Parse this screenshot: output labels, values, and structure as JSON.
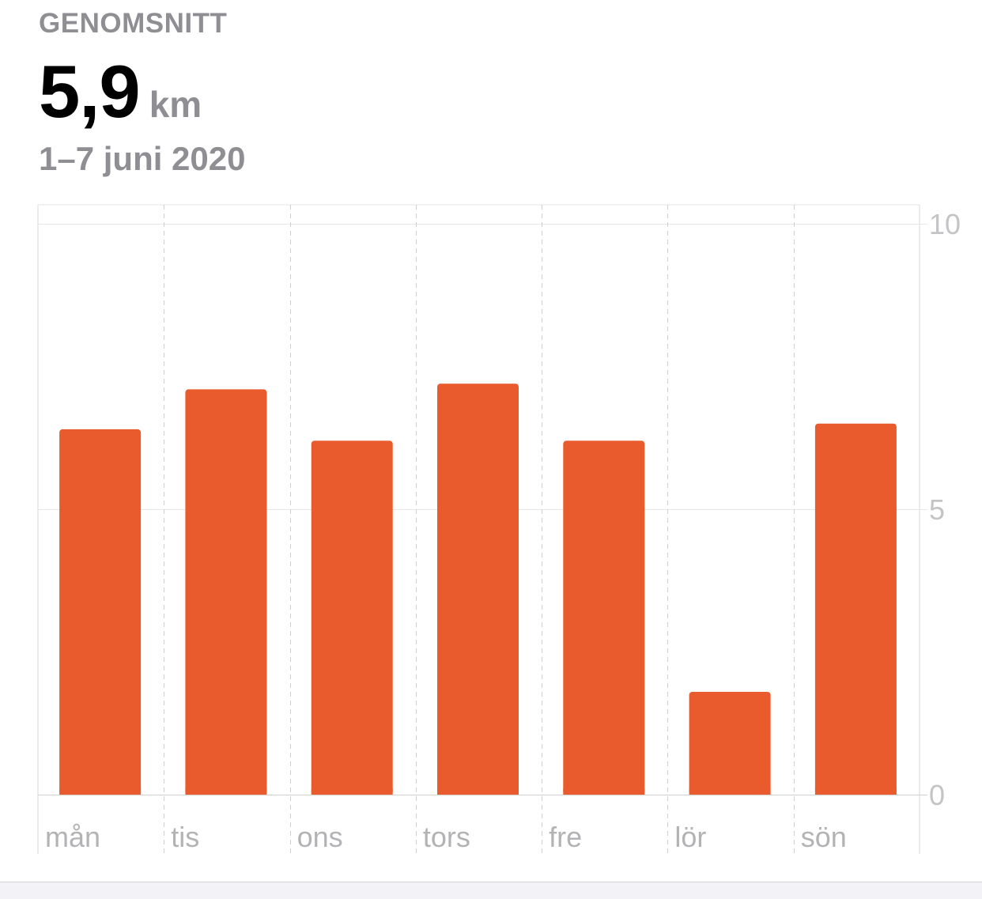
{
  "summary": {
    "caption": "GENOMSNITT",
    "value": "5,9",
    "unit": "km",
    "range": "1–7 juni 2020"
  },
  "chart_data": {
    "type": "bar",
    "categories": [
      "mån",
      "tis",
      "ons",
      "tors",
      "fre",
      "lör",
      "sön"
    ],
    "values": [
      6.4,
      7.1,
      6.2,
      7.2,
      6.2,
      1.8,
      6.5
    ],
    "ylim": [
      0,
      10
    ],
    "yticks": [
      "0",
      "5",
      "10"
    ],
    "grid": true,
    "bar_color": "#e95b2d"
  }
}
